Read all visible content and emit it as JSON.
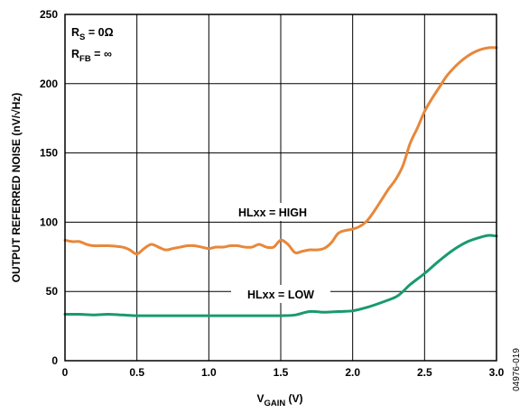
{
  "chart_data": {
    "type": "line",
    "xlabel_main": "V",
    "xlabel_sub": "GAIN",
    "xlabel_unit": " (V)",
    "ylabel": "OUTPUT REFERRED NOISE (nV/√Hz)",
    "xlim": [
      0,
      3.0
    ],
    "ylim": [
      0,
      250
    ],
    "x_ticks": [
      "0",
      "0.5",
      "1.0",
      "1.5",
      "2.0",
      "2.5",
      "3.0"
    ],
    "y_ticks": [
      "0",
      "50",
      "100",
      "150",
      "200",
      "250"
    ],
    "grid": true,
    "conditions": {
      "line1": {
        "main": "R",
        "sub": "S",
        "rest": " = 0Ω"
      },
      "line2": {
        "main": "R",
        "sub": "FB",
        "rest": " = ∞"
      }
    },
    "series": [
      {
        "name": "HLxx = HIGH",
        "color": "#E8873A",
        "x": [
          0,
          0.05,
          0.1,
          0.15,
          0.2,
          0.3,
          0.4,
          0.45,
          0.5,
          0.55,
          0.6,
          0.65,
          0.7,
          0.75,
          0.8,
          0.85,
          0.9,
          0.95,
          1.0,
          1.05,
          1.1,
          1.15,
          1.2,
          1.25,
          1.3,
          1.35,
          1.4,
          1.45,
          1.5,
          1.55,
          1.6,
          1.65,
          1.7,
          1.75,
          1.8,
          1.85,
          1.9,
          1.95,
          2.0,
          2.05,
          2.1,
          2.15,
          2.2,
          2.25,
          2.3,
          2.35,
          2.4,
          2.45,
          2.5,
          2.55,
          2.6,
          2.65,
          2.7,
          2.75,
          2.8,
          2.85,
          2.9,
          2.95,
          3.0
        ],
        "values": [
          87,
          86,
          86,
          84,
          83,
          83,
          82,
          80,
          77,
          81,
          84,
          82,
          80,
          81,
          82,
          83,
          83,
          82,
          81,
          82,
          82,
          83,
          83,
          82,
          82,
          84,
          82,
          82,
          87,
          84,
          78,
          79,
          80,
          80,
          81,
          85,
          92,
          94,
          95,
          97,
          101,
          108,
          116,
          124,
          131,
          141,
          157,
          168,
          180,
          189,
          197,
          205,
          211,
          216,
          220,
          223,
          225,
          226,
          226
        ]
      },
      {
        "name": "HLxx = LOW",
        "color": "#1A9A6C",
        "x": [
          0,
          0.1,
          0.2,
          0.3,
          0.4,
          0.5,
          0.6,
          0.7,
          0.8,
          0.9,
          1.0,
          1.1,
          1.2,
          1.3,
          1.4,
          1.5,
          1.6,
          1.7,
          1.8,
          1.9,
          2.0,
          2.1,
          2.2,
          2.3,
          2.35,
          2.4,
          2.5,
          2.6,
          2.7,
          2.8,
          2.9,
          2.95,
          3.0
        ],
        "values": [
          33.5,
          33.5,
          33,
          33.5,
          33,
          32.5,
          32.5,
          32.5,
          32.5,
          32.5,
          32.5,
          32.5,
          32.5,
          32.5,
          32.5,
          32.5,
          33,
          35.5,
          35,
          35.5,
          36,
          38.5,
          42,
          46,
          50,
          55,
          63,
          72,
          80,
          86,
          89.5,
          90.5,
          90
        ]
      }
    ]
  },
  "figure_id": "04976-019"
}
